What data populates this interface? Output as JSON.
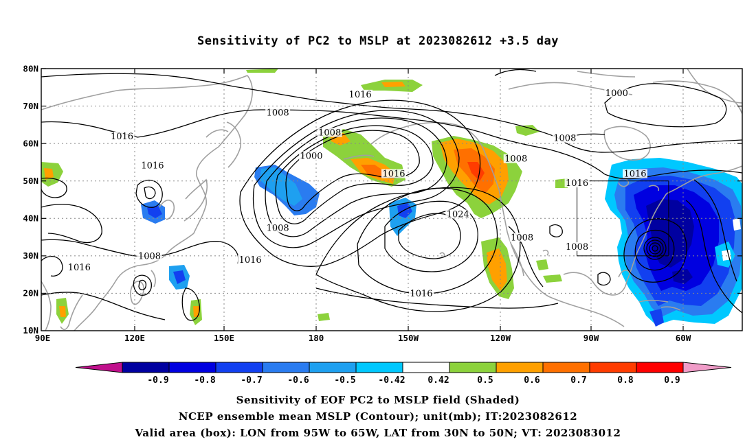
{
  "title": "Sensitivity of PC2 to MSLP at 2023082612 +3.5 day",
  "map": {
    "lat_labels": [
      "80N",
      "70N",
      "60N",
      "50N",
      "40N",
      "30N",
      "20N",
      "10N"
    ],
    "lon_labels": [
      "90E",
      "120E",
      "150E",
      "180",
      "150W",
      "120W",
      "90W",
      "60W"
    ],
    "contour_labels": [
      {
        "text": "1016",
        "lon": 194,
        "lat": 72.7
      },
      {
        "text": "1000",
        "lon": 278,
        "lat": 73.0
      },
      {
        "text": "1008",
        "lon": 167,
        "lat": 67.8
      },
      {
        "text": "1008",
        "lon": 184,
        "lat": 62.5
      },
      {
        "text": "1008",
        "lon": 261,
        "lat": 61.0
      },
      {
        "text": "1016",
        "lon": 116,
        "lat": 61.5
      },
      {
        "text": "1008",
        "lon": 245,
        "lat": 55.5
      },
      {
        "text": "1000",
        "lon": 178,
        "lat": 56.3
      },
      {
        "text": "1016",
        "lon": 205,
        "lat": 51.5
      },
      {
        "text": "1016",
        "lon": 284,
        "lat": 51.5
      },
      {
        "text": "1016",
        "lon": 126,
        "lat": 53.7
      },
      {
        "text": "1016",
        "lon": 265,
        "lat": 49.0
      },
      {
        "text": "1024",
        "lon": 226,
        "lat": 40.7
      },
      {
        "text": "1008",
        "lon": 167,
        "lat": 37.0
      },
      {
        "text": "1008",
        "lon": 247,
        "lat": 34.5
      },
      {
        "text": "1008",
        "lon": 265,
        "lat": 32.0
      },
      {
        "text": "1008",
        "lon": 125,
        "lat": 29.5
      },
      {
        "text": "1016",
        "lon": 158,
        "lat": 28.5
      },
      {
        "text": "1016",
        "lon": 102,
        "lat": 26.5
      },
      {
        "text": "1016",
        "lon": 214,
        "lat": 19.5
      }
    ],
    "valid_box": {
      "lon_min": -95,
      "lon_max": -65,
      "lat_min": 30,
      "lat_max": 50
    }
  },
  "colorbar": {
    "labels": [
      "-0.9",
      "-0.8",
      "-0.7",
      "-0.6",
      "-0.5",
      "-0.42",
      "0.42",
      "0.5",
      "0.6",
      "0.7",
      "0.8",
      "0.9"
    ],
    "colors": [
      "#0000a0",
      "#0000e0",
      "#1240f0",
      "#2a7cf0",
      "#1ea0f0",
      "#00c8ff",
      "#ffffff",
      "#8cd23c",
      "#ffa000",
      "#ff7000",
      "#ff3c00",
      "#ff0000"
    ],
    "low_arrow_color": "#c0108c",
    "high_arrow_color": "#f09cc8"
  },
  "captions": [
    "Sensitivity of EOF PC2 to MSLP field (Shaded)",
    "NCEP ensemble mean MSLP (Contour); unit(mb); IT:2023082612",
    "Valid area (box): LON from 95W to 65W, LAT from 30N to 50N; VT: 2023083012"
  ]
}
